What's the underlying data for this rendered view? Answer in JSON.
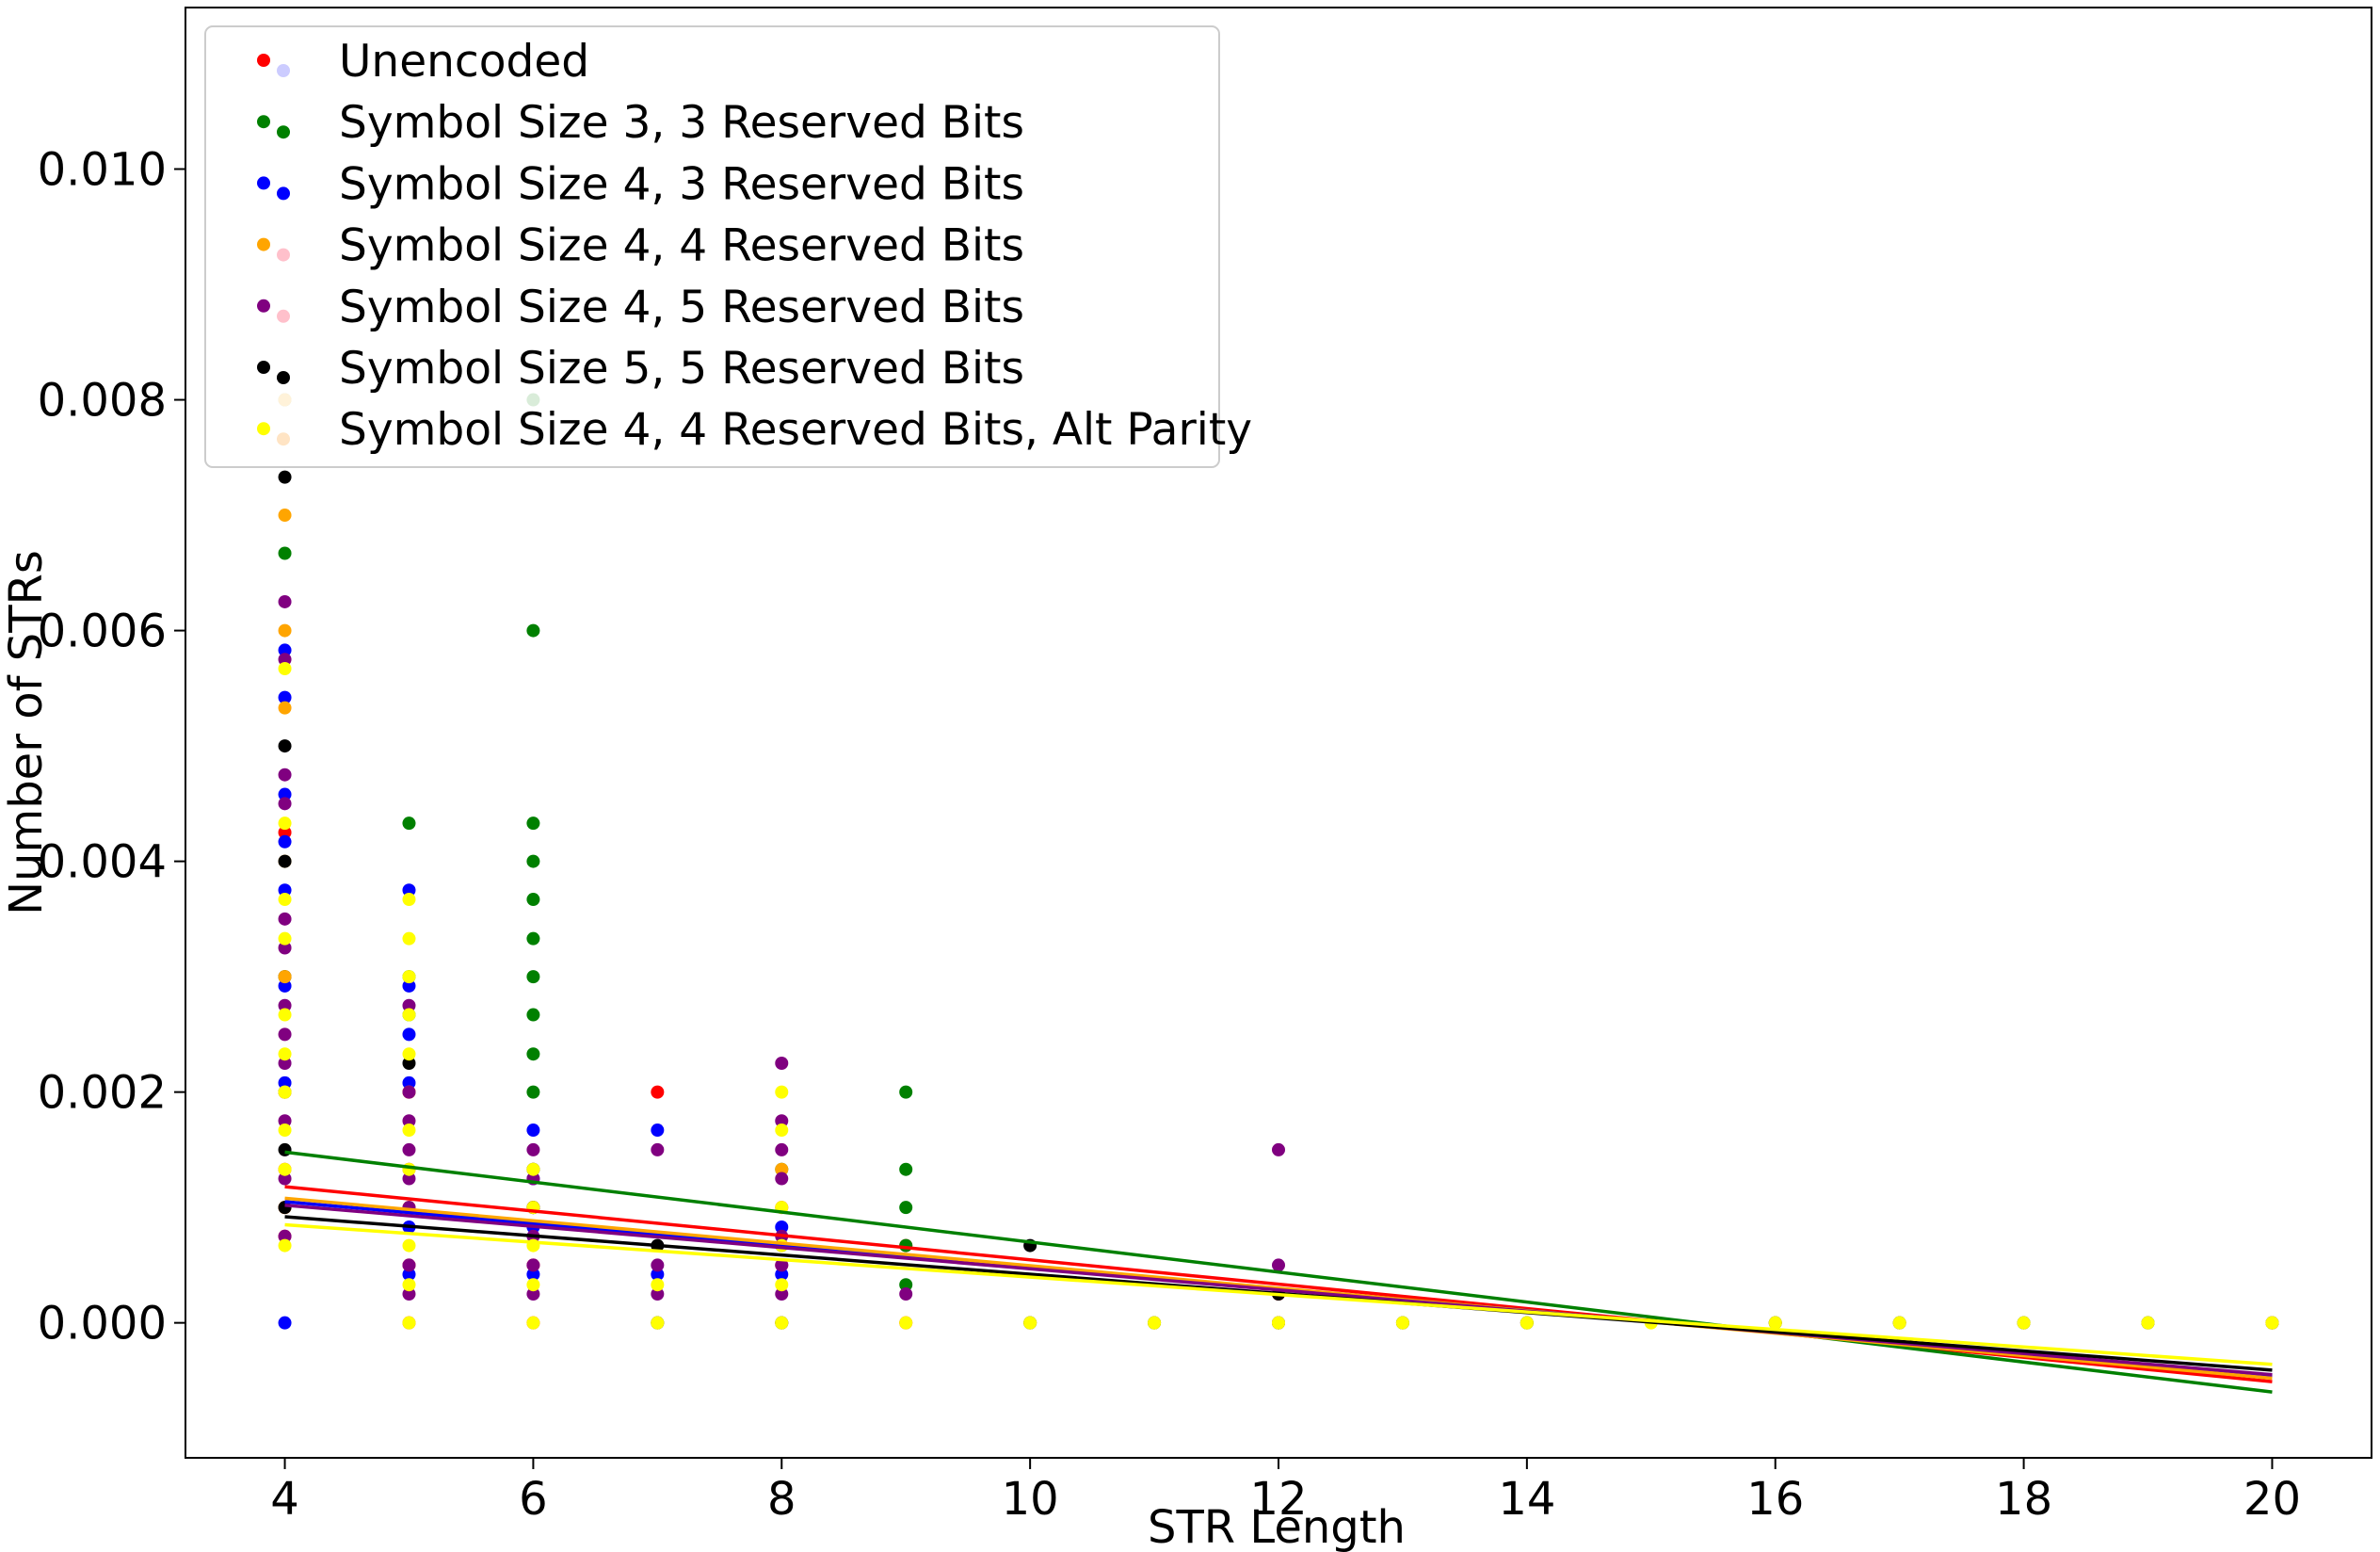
{
  "chart_data": {
    "type": "scatter",
    "title": "",
    "xlabel": "STR Length",
    "ylabel": "Number of STRs",
    "xlim": [
      3.2,
      20.8
    ],
    "ylim": [
      -0.00117,
      0.0114
    ],
    "xticks": [
      "4",
      "6",
      "8",
      "10",
      "12",
      "14",
      "16",
      "18",
      "20"
    ],
    "yticks": [
      "0.000",
      "0.002",
      "0.004",
      "0.006",
      "0.008",
      "0.010"
    ],
    "grid": false,
    "legend_position": "top-left",
    "series": [
      {
        "name": "Unencoded",
        "color": "#ff0000",
        "points": [
          [
            4,
            0.001
          ],
          [
            4,
            0.00425
          ],
          [
            4,
            0.003
          ],
          [
            4,
            0.002
          ],
          [
            4,
            0.00133
          ],
          [
            4,
            0.00075
          ],
          [
            5,
            0.002
          ],
          [
            5,
            0.00133
          ],
          [
            5,
            0.001
          ],
          [
            5,
            0.0005
          ],
          [
            5,
            0
          ],
          [
            6,
            0.00133
          ],
          [
            6,
            0.001
          ],
          [
            6,
            0.0005
          ],
          [
            6,
            0
          ],
          [
            7,
            0.002
          ],
          [
            7,
            0
          ],
          [
            8,
            0.001
          ],
          [
            8,
            0.0005
          ],
          [
            8,
            0
          ],
          [
            9,
            0.00067
          ],
          [
            9,
            0
          ],
          [
            10,
            0
          ],
          [
            11,
            0
          ],
          [
            12,
            0.00025
          ],
          [
            12,
            0
          ],
          [
            13,
            0
          ],
          [
            14,
            0
          ],
          [
            16,
            0
          ],
          [
            17,
            0
          ],
          [
            18,
            0
          ],
          [
            19,
            0
          ],
          [
            20,
            0
          ]
        ],
        "trend": [
          [
            4,
            0.00118
          ],
          [
            20,
            -0.00051
          ]
        ]
      },
      {
        "name": "Symbol Size 3, 3 Reserved Bits",
        "color": "#008000",
        "points": [
          [
            4,
            0.008
          ],
          [
            4,
            0.00667
          ],
          [
            4,
            0.003
          ],
          [
            4,
            0.002
          ],
          [
            5,
            0.00433
          ],
          [
            5,
            0.003
          ],
          [
            5,
            0.00267
          ],
          [
            6,
            0.008
          ],
          [
            6,
            0.006
          ],
          [
            6,
            0.00433
          ],
          [
            6,
            0.004
          ],
          [
            6,
            0.00367
          ],
          [
            6,
            0.00333
          ],
          [
            6,
            0.003
          ],
          [
            6,
            0.00267
          ],
          [
            6,
            0.00233
          ],
          [
            6,
            0.002
          ],
          [
            6,
            0.00133
          ],
          [
            7,
            0
          ],
          [
            8,
            0.00133
          ],
          [
            8,
            0
          ],
          [
            9,
            0.002
          ],
          [
            9,
            0.00133
          ],
          [
            9,
            0.001
          ],
          [
            9,
            0.00067
          ],
          [
            9,
            0.00033
          ],
          [
            10,
            0
          ],
          [
            11,
            0
          ],
          [
            12,
            0
          ],
          [
            13,
            0
          ],
          [
            14,
            0
          ],
          [
            16,
            0
          ],
          [
            17,
            0
          ],
          [
            18,
            0
          ],
          [
            19,
            0
          ],
          [
            20,
            0
          ]
        ],
        "trend": [
          [
            4,
            0.00148
          ],
          [
            20,
            -0.0006
          ]
        ]
      },
      {
        "name": "Symbol Size 4, 3 Reserved Bits",
        "color": "#0000ff",
        "points": [
          [
            4,
            0.00583
          ],
          [
            4,
            0.00542
          ],
          [
            4,
            0.00458
          ],
          [
            4,
            0.00417
          ],
          [
            4,
            0.00375
          ],
          [
            4,
            0.00292
          ],
          [
            4,
            0.00208
          ],
          [
            4,
            0
          ],
          [
            5,
            0.00375
          ],
          [
            5,
            0.00292
          ],
          [
            5,
            0.0025
          ],
          [
            5,
            0.00208
          ],
          [
            5,
            0.00083
          ],
          [
            5,
            0.00042
          ],
          [
            6,
            0.00167
          ],
          [
            6,
            0.00125
          ],
          [
            6,
            0.00083
          ],
          [
            6,
            0.00042
          ],
          [
            7,
            0.00167
          ],
          [
            7,
            0.00042
          ],
          [
            8,
            0.00083
          ],
          [
            8,
            0.00042
          ],
          [
            12,
            0
          ],
          [
            20,
            0
          ]
        ],
        "trend": [
          [
            4,
            0.00105
          ],
          [
            20,
            -0.00046
          ]
        ]
      },
      {
        "name": "Symbol Size 4, 4 Reserved Bits",
        "color": "#ffa500",
        "points": [
          [
            4,
            0.008
          ],
          [
            4,
            0.007
          ],
          [
            4,
            0.006
          ],
          [
            4,
            0.00533
          ],
          [
            4,
            0.004
          ],
          [
            4,
            0.003
          ],
          [
            4,
            0.002
          ],
          [
            4,
            0.001
          ],
          [
            5,
            0.002
          ],
          [
            5,
            0.001
          ],
          [
            6,
            0.001
          ],
          [
            8,
            0.00133
          ],
          [
            12,
            0
          ],
          [
            20,
            0
          ]
        ],
        "trend": [
          [
            4,
            0.00108
          ],
          [
            20,
            -0.00048
          ]
        ]
      },
      {
        "name": "Symbol Size 4, 5 Reserved Bits",
        "color": "#800080",
        "points": [
          [
            4,
            0.00625
          ],
          [
            4,
            0.00575
          ],
          [
            4,
            0.00475
          ],
          [
            4,
            0.0045
          ],
          [
            4,
            0.0035
          ],
          [
            4,
            0.00325
          ],
          [
            4,
            0.00275
          ],
          [
            4,
            0.0025
          ],
          [
            4,
            0.00225
          ],
          [
            4,
            0.00175
          ],
          [
            4,
            0.00125
          ],
          [
            4,
            0.00075
          ],
          [
            5,
            0.00275
          ],
          [
            5,
            0.002
          ],
          [
            5,
            0.00175
          ],
          [
            5,
            0.0015
          ],
          [
            5,
            0.00125
          ],
          [
            5,
            0.001
          ],
          [
            5,
            0.0005
          ],
          [
            5,
            0.00025
          ],
          [
            6,
            0.0015
          ],
          [
            6,
            0.00125
          ],
          [
            6,
            0.001
          ],
          [
            6,
            0.00075
          ],
          [
            6,
            0.0005
          ],
          [
            6,
            0.00025
          ],
          [
            7,
            0.0015
          ],
          [
            7,
            0.0005
          ],
          [
            7,
            0.00025
          ],
          [
            8,
            0.00225
          ],
          [
            8,
            0.00175
          ],
          [
            8,
            0.0015
          ],
          [
            8,
            0.00125
          ],
          [
            8,
            0.00075
          ],
          [
            8,
            0.0005
          ],
          [
            8,
            0.00025
          ],
          [
            9,
            0.00025
          ],
          [
            12,
            0.0015
          ],
          [
            12,
            0.0005
          ]
        ],
        "trend": [
          [
            4,
            0.00102
          ],
          [
            20,
            -0.00045
          ]
        ]
      },
      {
        "name": "Symbol Size 5, 5 Reserved Bits",
        "color": "#000000",
        "points": [
          [
            4,
            0.00733
          ],
          [
            4,
            0.005
          ],
          [
            4,
            0.004
          ],
          [
            4,
            0.0015
          ],
          [
            4,
            0.001
          ],
          [
            5,
            0.00225
          ],
          [
            6,
            0.001
          ],
          [
            7,
            0.00067
          ],
          [
            8,
            0.00067
          ],
          [
            10,
            0.00067
          ],
          [
            12,
            0.00025
          ]
        ],
        "trend": [
          [
            4,
            0.00092
          ],
          [
            20,
            -0.00041
          ]
        ]
      },
      {
        "name": "Symbol Size 4, 4 Reserved Bits, Alt Parity",
        "color": "#ffff00",
        "points": [
          [
            4,
            0.00567
          ],
          [
            4,
            0.00433
          ],
          [
            4,
            0.00367
          ],
          [
            4,
            0.00333
          ],
          [
            4,
            0.00267
          ],
          [
            4,
            0.00233
          ],
          [
            4,
            0.002
          ],
          [
            4,
            0.00167
          ],
          [
            4,
            0.00133
          ],
          [
            4,
            0.00067
          ],
          [
            5,
            0.00367
          ],
          [
            5,
            0.00333
          ],
          [
            5,
            0.003
          ],
          [
            5,
            0.00267
          ],
          [
            5,
            0.00233
          ],
          [
            5,
            0.00167
          ],
          [
            5,
            0.00133
          ],
          [
            5,
            0.00067
          ],
          [
            5,
            0.00033
          ],
          [
            5,
            0
          ],
          [
            6,
            0.00133
          ],
          [
            6,
            0.001
          ],
          [
            6,
            0.00067
          ],
          [
            6,
            0.00033
          ],
          [
            6,
            0
          ],
          [
            7,
            0.00033
          ],
          [
            7,
            0
          ],
          [
            8,
            0.002
          ],
          [
            8,
            0.00167
          ],
          [
            8,
            0.001
          ],
          [
            8,
            0.00067
          ],
          [
            8,
            0.00033
          ],
          [
            8,
            0
          ],
          [
            9,
            0
          ],
          [
            10,
            0
          ],
          [
            11,
            0
          ],
          [
            12,
            0
          ],
          [
            13,
            0
          ],
          [
            14,
            0
          ],
          [
            15,
            0
          ],
          [
            16,
            0
          ],
          [
            17,
            0
          ],
          [
            18,
            0
          ],
          [
            19,
            0
          ],
          [
            20,
            0
          ]
        ],
        "trend": [
          [
            4,
            0.00085
          ],
          [
            20,
            -0.00036
          ]
        ]
      }
    ],
    "legend_marker_colors": [
      [
        "#ff0000",
        "#ccccff"
      ],
      [
        "#008000",
        "#008000"
      ],
      [
        "#0000ff",
        "#0000ff"
      ],
      [
        "#ffa500",
        "#ffc0cb"
      ],
      [
        "#800080",
        "#ffc0cb"
      ],
      [
        "#000000",
        "#000000"
      ],
      [
        "#ffff00",
        "#ffe4c4"
      ]
    ]
  }
}
